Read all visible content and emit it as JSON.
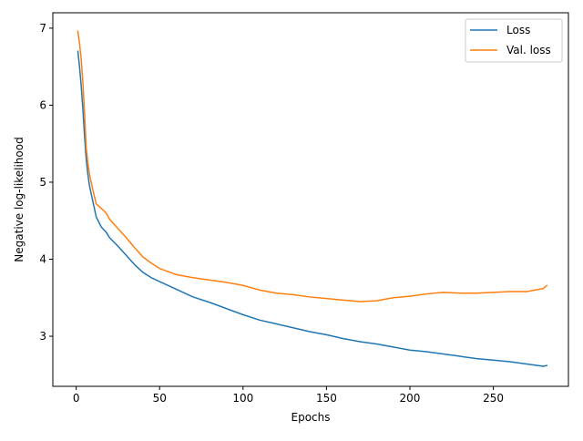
{
  "chart_data": {
    "type": "line",
    "title": "",
    "xlabel": "Epochs",
    "ylabel": "Negative log-likelihood",
    "xlim": [
      -14,
      295
    ],
    "ylim": [
      2.35,
      7.2
    ],
    "xticks": [
      0,
      50,
      100,
      150,
      200,
      250
    ],
    "yticks": [
      3,
      4,
      5,
      6,
      7
    ],
    "grid": false,
    "legend_position": "top-right",
    "series": [
      {
        "name": "Loss",
        "color": "#1f77b4",
        "x": [
          1,
          2,
          3,
          4,
          5,
          6,
          7,
          8,
          10,
          12,
          15,
          18,
          20,
          25,
          30,
          35,
          40,
          45,
          50,
          60,
          70,
          80,
          90,
          100,
          110,
          120,
          130,
          140,
          150,
          160,
          170,
          180,
          190,
          200,
          210,
          220,
          230,
          240,
          250,
          260,
          270,
          280,
          282
        ],
        "y": [
          6.7,
          6.5,
          6.25,
          5.95,
          5.6,
          5.3,
          5.1,
          4.95,
          4.75,
          4.55,
          4.42,
          4.35,
          4.28,
          4.17,
          4.05,
          3.93,
          3.83,
          3.76,
          3.71,
          3.61,
          3.51,
          3.44,
          3.36,
          3.28,
          3.21,
          3.16,
          3.11,
          3.06,
          3.02,
          2.97,
          2.93,
          2.9,
          2.86,
          2.82,
          2.8,
          2.77,
          2.74,
          2.71,
          2.69,
          2.67,
          2.64,
          2.61,
          2.62
        ]
      },
      {
        "name": "Val. loss",
        "color": "#ff7f0e",
        "x": [
          1,
          2,
          3,
          4,
          5,
          6,
          7,
          8,
          10,
          12,
          15,
          18,
          20,
          25,
          30,
          35,
          40,
          45,
          50,
          60,
          70,
          80,
          90,
          100,
          110,
          120,
          130,
          140,
          150,
          160,
          170,
          180,
          190,
          200,
          210,
          220,
          230,
          240,
          250,
          260,
          270,
          280,
          282
        ],
        "y": [
          6.96,
          6.8,
          6.6,
          6.3,
          5.9,
          5.45,
          5.25,
          5.1,
          4.9,
          4.72,
          4.66,
          4.6,
          4.52,
          4.4,
          4.28,
          4.15,
          4.03,
          3.95,
          3.88,
          3.8,
          3.76,
          3.73,
          3.7,
          3.66,
          3.6,
          3.56,
          3.54,
          3.51,
          3.49,
          3.47,
          3.45,
          3.46,
          3.5,
          3.52,
          3.55,
          3.57,
          3.56,
          3.56,
          3.57,
          3.58,
          3.58,
          3.62,
          3.66
        ]
      }
    ]
  }
}
